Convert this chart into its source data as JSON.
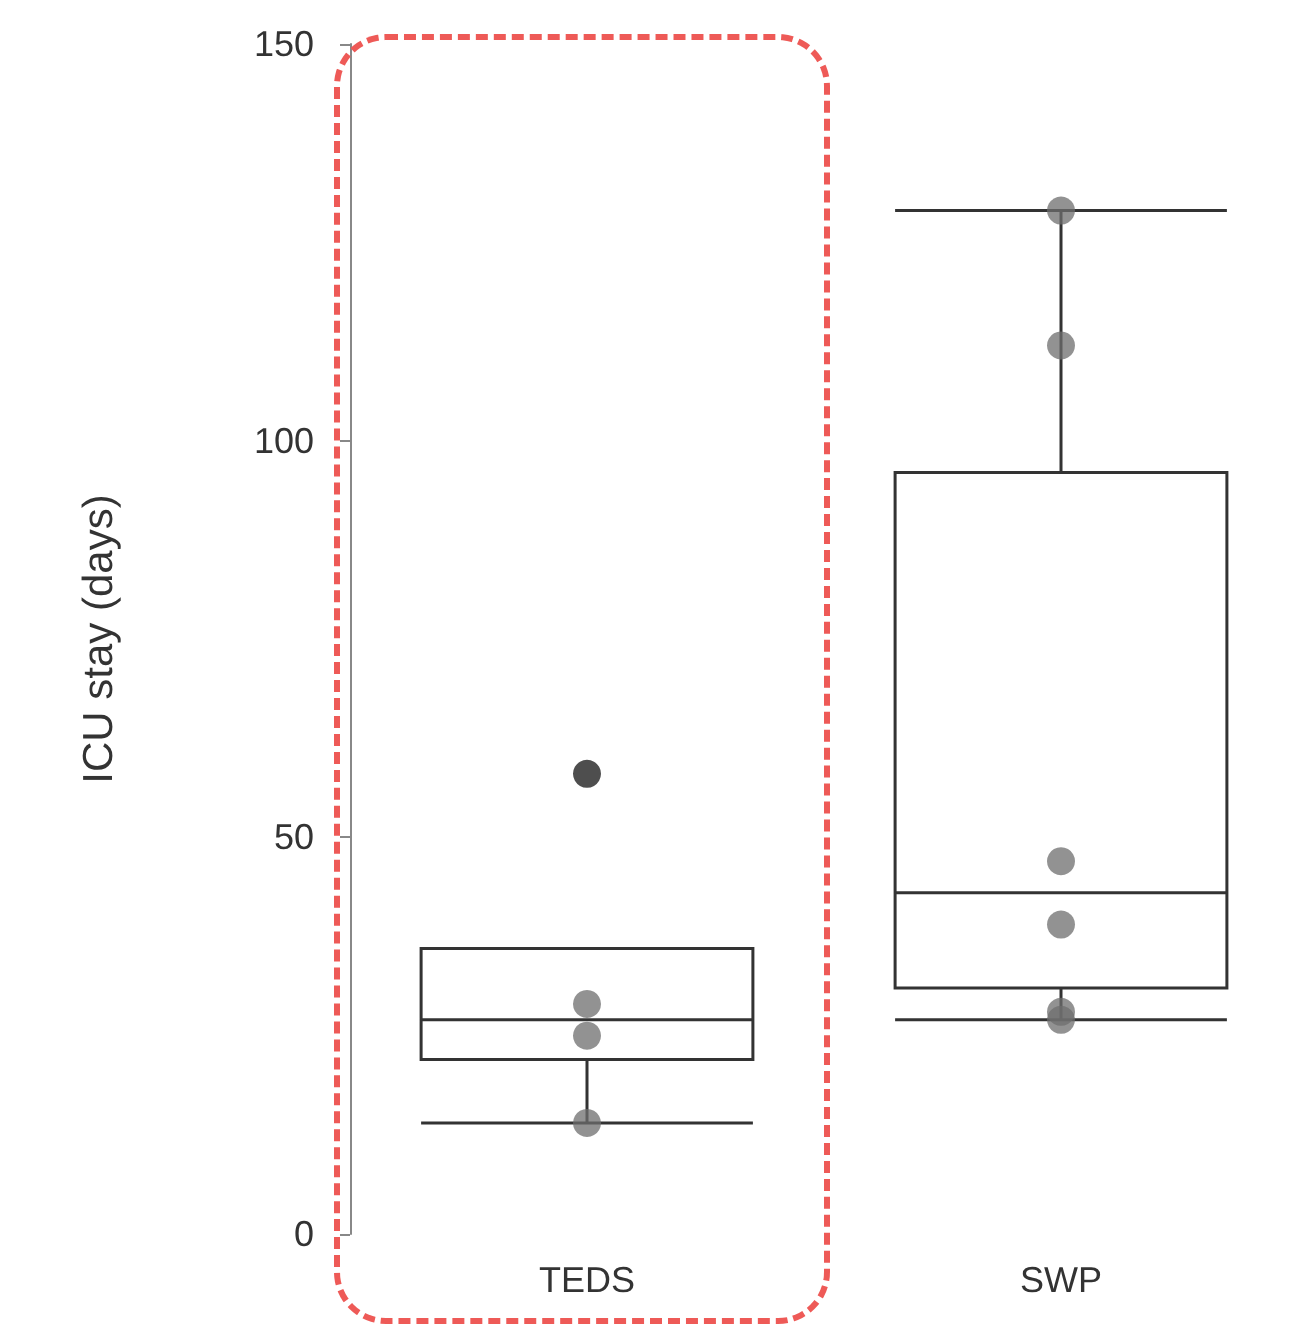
{
  "chart_data": {
    "type": "box",
    "ylabel": "ICU stay (days)",
    "categories": [
      "TEDS",
      "SWP"
    ],
    "ylim": [
      0,
      150
    ],
    "yticks": [
      0,
      50,
      100,
      150
    ],
    "grid": false,
    "boxes": [
      {
        "low": 14,
        "q1": 22,
        "median": 27,
        "q3": 36,
        "high": 36,
        "outliers": [
          58
        ]
      },
      {
        "low": 27,
        "q1": 31,
        "median": 43,
        "q3": 96,
        "high": 129
      }
    ],
    "series": [
      {
        "type": "scatter",
        "color": "#6e6e6e",
        "marker": "circle",
        "x": [
          "TEDS",
          "TEDS",
          "TEDS",
          "SWP",
          "SWP",
          "SWP",
          "SWP",
          "SWP",
          "SWP"
        ],
        "values": [
          29,
          25,
          14,
          129,
          112,
          47,
          39,
          28,
          27
        ]
      }
    ]
  }
}
